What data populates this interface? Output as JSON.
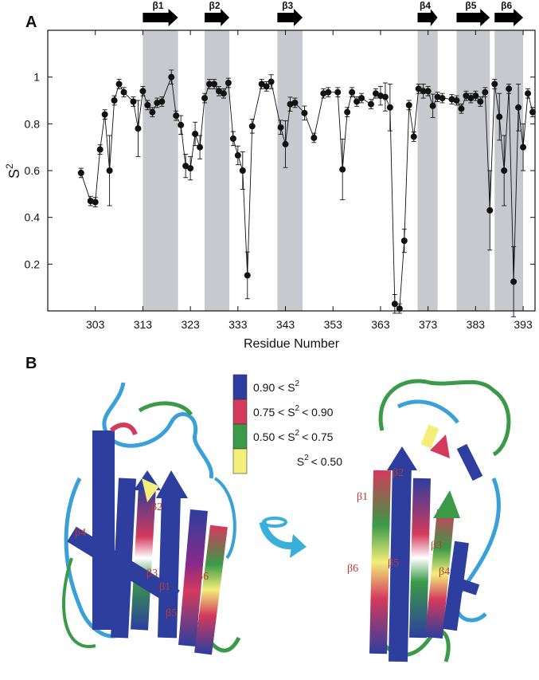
{
  "panel_labels": [
    "A",
    "B"
  ],
  "chart_data": {
    "type": "line",
    "color": "#111111",
    "x_label": "Residue Number",
    "y_label": [
      "S",
      "2"
    ],
    "xlim": [
      293,
      395.5
    ],
    "ylim": [
      0,
      1.2
    ],
    "xticks": [
      303,
      313,
      323,
      333,
      343,
      353,
      363,
      373,
      383,
      393
    ],
    "yticks": [
      0.2,
      0.4,
      0.6,
      0.8,
      1
    ],
    "shade_color": "#c8c9cf",
    "shaded_regions": [
      {
        "label": "β1",
        "start": 313,
        "end": 320.4
      },
      {
        "label": "β2",
        "start": 326,
        "end": 331.2
      },
      {
        "label": "β3",
        "start": 341.3,
        "end": 346.6
      },
      {
        "label": "β4",
        "start": 370.8,
        "end": 375
      },
      {
        "label": "β5",
        "start": 379,
        "end": 386
      },
      {
        "label": "β6",
        "start": 387,
        "end": 393
      }
    ],
    "x": [
      300,
      302,
      303,
      304,
      305,
      306,
      307,
      308,
      309,
      311,
      312,
      313,
      314,
      315,
      316,
      317,
      319,
      320,
      321,
      322,
      323,
      324,
      325,
      326,
      327,
      328,
      329,
      330,
      331,
      332,
      333,
      334,
      335,
      336,
      338,
      339,
      340,
      342,
      343,
      344,
      345,
      347,
      349,
      351,
      352,
      354,
      355,
      356,
      357,
      358,
      359,
      361,
      362,
      363,
      364,
      365,
      366,
      367,
      368,
      369,
      370,
      371,
      372,
      373,
      374,
      375,
      376,
      378,
      379,
      380,
      381,
      382,
      383,
      384,
      385,
      386,
      387,
      388,
      389,
      390,
      391,
      392,
      393,
      394,
      395
    ],
    "values": [
      0.59,
      0.47,
      0.465,
      0.69,
      0.84,
      0.6,
      0.9,
      0.97,
      0.935,
      0.895,
      0.78,
      0.94,
      0.88,
      0.85,
      0.89,
      0.895,
      1.0,
      0.835,
      0.795,
      0.62,
      0.61,
      0.757,
      0.7,
      0.91,
      0.97,
      0.97,
      0.94,
      0.93,
      0.975,
      0.737,
      0.665,
      0.6,
      0.152,
      0.79,
      0.97,
      0.96,
      0.98,
      0.785,
      0.713,
      0.884,
      0.89,
      0.846,
      0.74,
      0.93,
      0.935,
      0.935,
      0.605,
      0.85,
      0.935,
      0.895,
      0.91,
      0.884,
      0.93,
      0.92,
      0.915,
      0.87,
      0.03,
      0.01,
      0.3,
      0.88,
      0.745,
      0.95,
      0.94,
      0.94,
      0.877,
      0.915,
      0.91,
      0.905,
      0.9,
      0.865,
      0.92,
      0.91,
      0.92,
      0.895,
      0.935,
      0.43,
      0.97,
      0.83,
      0.6,
      0.95,
      0.125,
      0.87,
      0.7,
      0.93,
      0.85
    ],
    "errors": [
      0.02,
      0.02,
      0.02,
      0.02,
      0.02,
      0.15,
      0.02,
      0.02,
      0.02,
      0.02,
      0.12,
      0.02,
      0.02,
      0.02,
      0.02,
      0.02,
      0.03,
      0.02,
      0.04,
      0.05,
      0.05,
      0.05,
      0.05,
      0.02,
      0.02,
      0.02,
      0.02,
      0.02,
      0.02,
      0.03,
      0.04,
      0.08,
      0.1,
      0.03,
      0.02,
      0.02,
      0.03,
      0.03,
      0.1,
      0.03,
      0.02,
      0.03,
      0.02,
      0.02,
      0.02,
      0.02,
      0.13,
      0.02,
      0.02,
      0.02,
      0.02,
      0.02,
      0.02,
      0.04,
      0.06,
      0.1,
      0.04,
      0.02,
      0.05,
      0.02,
      0.02,
      0.02,
      0.03,
      0.02,
      0.05,
      0.02,
      0.02,
      0.02,
      0.02,
      0.02,
      0.02,
      0.02,
      0.02,
      0.02,
      0.02,
      0.17,
      0.02,
      0.1,
      0.15,
      0.02,
      0.15,
      0.1,
      0.1,
      0.02,
      0.02
    ]
  },
  "panel_b": {
    "legend": [
      {
        "color": "#2d3e9e",
        "parts": [
          "0.90 < S",
          "2"
        ]
      },
      {
        "color": "#d43a5c",
        "parts": [
          "0.75 < S",
          "2",
          "< 0.90"
        ]
      },
      {
        "color": "#3a9a48",
        "parts": [
          "0.50 < S",
          "2",
          "< 0.75"
        ]
      },
      {
        "color": "#f4ee7a",
        "parts": [
          "S",
          "2",
          "< 0.50"
        ]
      }
    ],
    "structures": [
      {
        "labels": [
          "β2",
          "β4",
          "β3",
          "β1",
          "β6",
          "β5"
        ]
      },
      {
        "labels": [
          "β2",
          "β1",
          "β3",
          "β6",
          "β5",
          "β4"
        ]
      }
    ]
  }
}
